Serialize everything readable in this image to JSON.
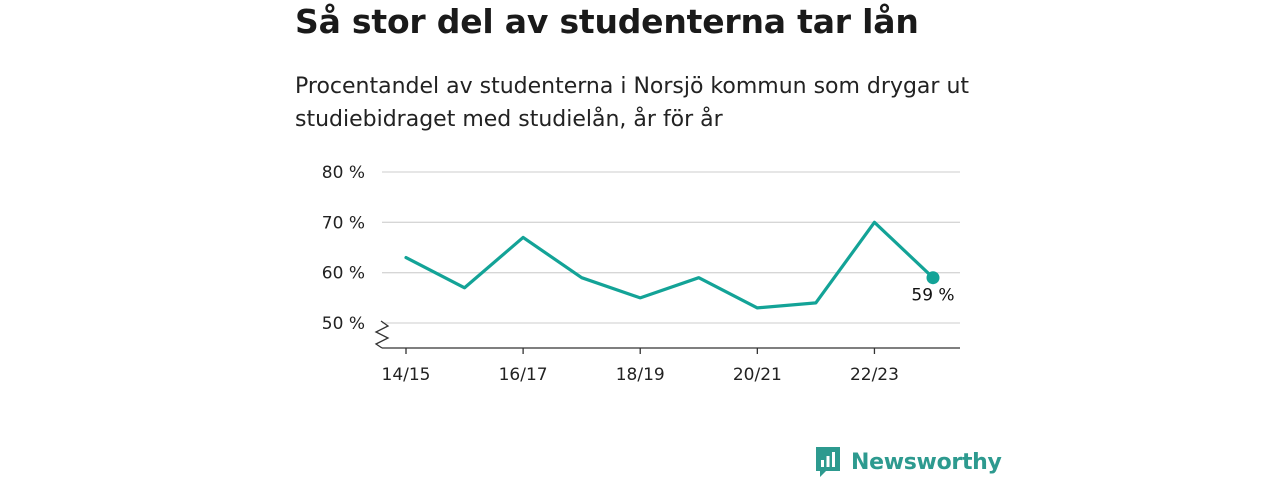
{
  "header": {
    "title": "Så stor del av studenterna tar lån",
    "subtitle": "Procentandel av studenterna i Norsjö kommun som drygar ut studiebidraget med studielån, år för år"
  },
  "brand": {
    "name": "Newsworthy",
    "color": "#2d9a8f",
    "icon": "bar-chart-speech-bubble-icon"
  },
  "chart_data": {
    "type": "line",
    "x": [
      "14/15",
      "15/16",
      "16/17",
      "17/18",
      "18/19",
      "19/20",
      "20/21",
      "21/22",
      "22/23",
      "23/24"
    ],
    "x_tick_labels": [
      "14/15",
      "16/17",
      "18/19",
      "20/21",
      "22/23"
    ],
    "series": [
      {
        "values": [
          63,
          57,
          67,
          59,
          55,
          59,
          53,
          54,
          70,
          59
        ],
        "color": "#13a397"
      }
    ],
    "ylim": [
      45,
      80
    ],
    "y_ticks": [
      50,
      60,
      70,
      80
    ],
    "y_tick_labels": [
      "50 %",
      "60 %",
      "70 %",
      "80 %"
    ],
    "axis_break": true,
    "grid": true,
    "last_point_label": "59 %"
  }
}
